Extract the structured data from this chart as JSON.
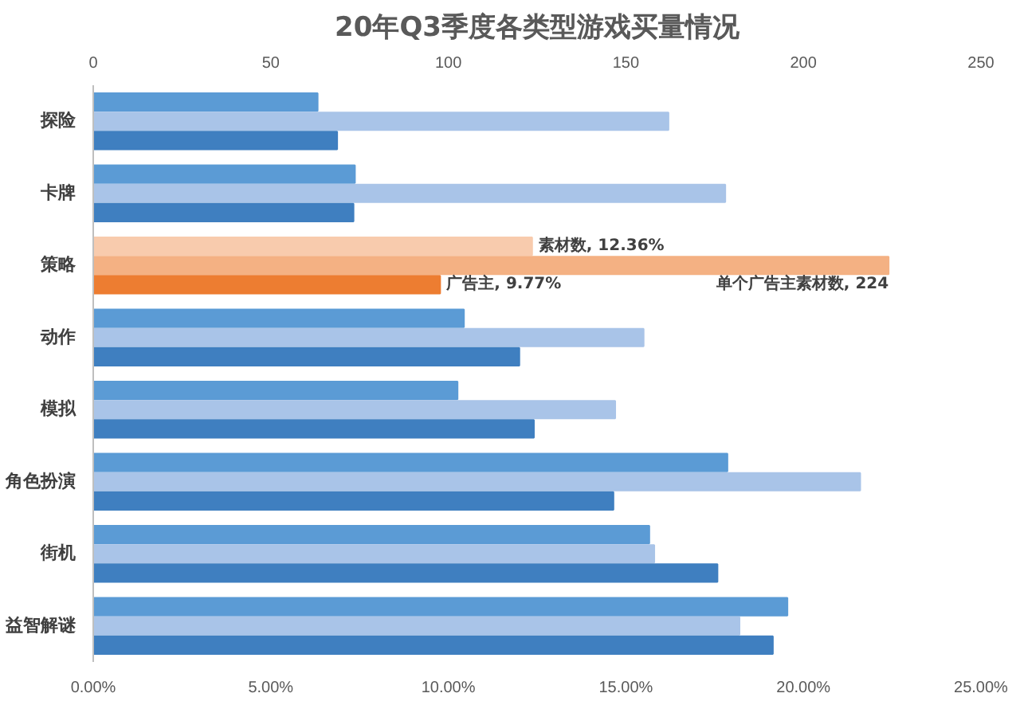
{
  "chart_data": {
    "type": "bar",
    "orientation": "horizontal",
    "title": "20年Q3季度各类型游戏买量情况",
    "categories": [
      "探险",
      "卡牌",
      "策略",
      "动作",
      "模拟",
      "角色扮演",
      "街机",
      "益智解谜"
    ],
    "series": [
      {
        "name": "素材数",
        "colors": [
          "#5b9bd5",
          "#5b9bd5",
          "#f8cbad",
          "#5b9bd5",
          "#5b9bd5",
          "#5b9bd5",
          "#5b9bd5",
          "#5b9bd5"
        ],
        "values": [
          6.32,
          7.37,
          12.36,
          10.44,
          10.26,
          17.86,
          15.66,
          19.55
        ],
        "value_labels": [
          null,
          null,
          ", 12.36%",
          null,
          null,
          null,
          null,
          null
        ]
      },
      {
        "name": "单个广告主素材数",
        "axis": "x2",
        "colors": [
          "#a9c4e8",
          "#a9c4e8",
          "#f4b183",
          "#a9c4e8",
          "#a9c4e8",
          "#a9c4e8",
          "#a9c4e8",
          "#a9c4e8"
        ],
        "values": [
          162,
          178,
          224,
          155,
          147,
          216,
          158,
          182
        ],
        "value_labels": [
          null,
          null,
          ", 224",
          null,
          null,
          null,
          null,
          null
        ]
      },
      {
        "name": "广告主",
        "colors": [
          "#3f7fc0",
          "#3f7fc0",
          "#ed7d31",
          "#3f7fc0",
          "#3f7fc0",
          "#3f7fc0",
          "#3f7fc0",
          "#3f7fc0"
        ],
        "values": [
          6.87,
          7.33,
          9.77,
          12.0,
          12.41,
          14.65,
          17.58,
          19.14
        ],
        "value_labels": [
          null,
          null,
          ", 9.77%",
          null,
          null,
          null,
          null,
          null
        ]
      }
    ],
    "xlim": [
      0,
      25
    ],
    "xticks": [
      {
        "value": 0,
        "label": "0.00%"
      },
      {
        "value": 5,
        "label": "5.00%"
      },
      {
        "value": 10,
        "label": "10.00%"
      },
      {
        "value": 15,
        "label": "15.00%"
      },
      {
        "value": 20,
        "label": "20.00%"
      },
      {
        "value": 25,
        "label": "25.00%"
      }
    ],
    "x2lim": [
      0,
      250
    ],
    "x2ticks": [
      0,
      50,
      100,
      150,
      200,
      250
    ],
    "grid": false
  }
}
